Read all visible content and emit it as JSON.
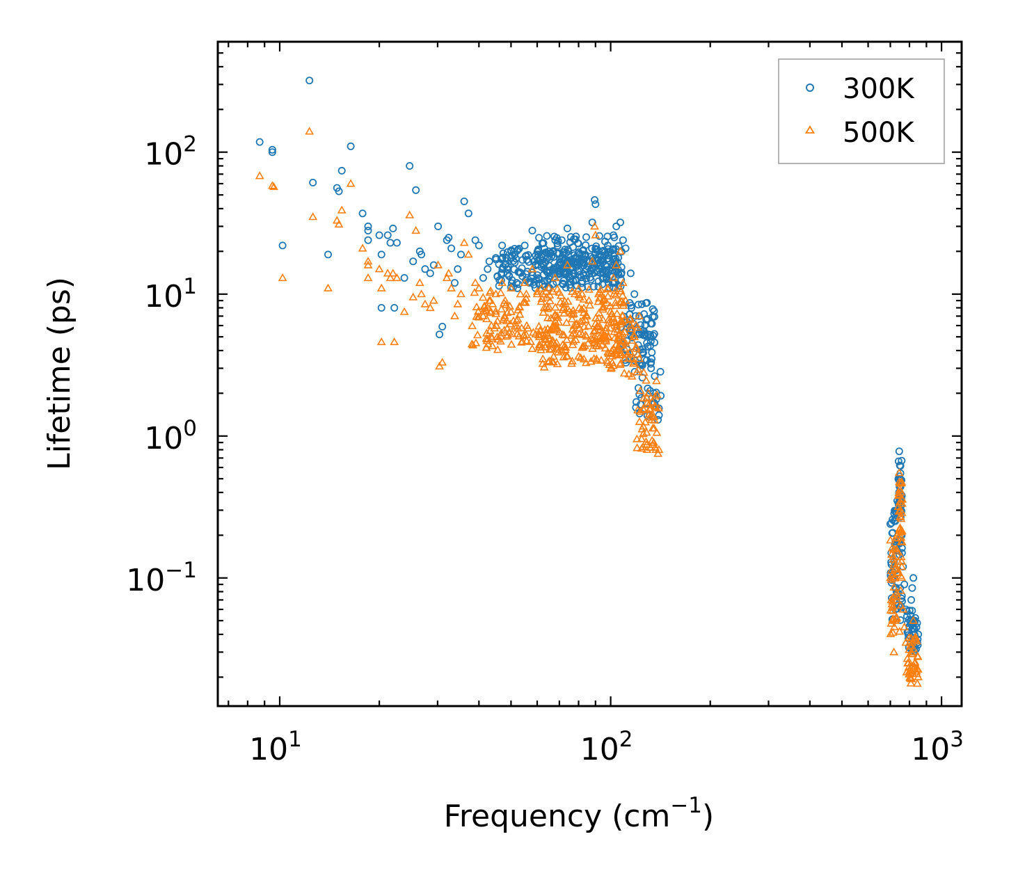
{
  "chart_data": {
    "type": "scatter",
    "title": "",
    "xlabel": "Frequency (cm",
    "xlabel_sup": "−1",
    "xlabel_end": ")",
    "ylabel": "Lifetime (ps)",
    "xscale": "log",
    "yscale": "log",
    "xlim": [
      6.5,
      1150
    ],
    "ylim": [
      0.0125,
      600
    ],
    "x_ticks": [
      {
        "value": 10,
        "base": "10",
        "exp": "1"
      },
      {
        "value": 100,
        "base": "10",
        "exp": "2"
      },
      {
        "value": 1000,
        "base": "10",
        "exp": "3"
      }
    ],
    "y_ticks": [
      {
        "value": 0.1,
        "base": "10",
        "exp": "−1"
      },
      {
        "value": 1,
        "base": "10",
        "exp": "0"
      },
      {
        "value": 10,
        "base": "10",
        "exp": "1"
      },
      {
        "value": 100,
        "base": "10",
        "exp": "2"
      }
    ],
    "legend_position": "top-right",
    "series": [
      {
        "name": "300K",
        "marker": "circle-open",
        "color": "#1f77b4",
        "points": [
          [
            8.7,
            118
          ],
          [
            9.5,
            104
          ],
          [
            9.5,
            100
          ],
          [
            10.2,
            22
          ],
          [
            12.3,
            320
          ],
          [
            12.6,
            61
          ],
          [
            14.0,
            19
          ],
          [
            14.9,
            56
          ],
          [
            15.1,
            53
          ],
          [
            15.4,
            74
          ],
          [
            16.4,
            110
          ],
          [
            17.8,
            37
          ],
          [
            18.5,
            30
          ],
          [
            18.5,
            28
          ],
          [
            18.5,
            24
          ],
          [
            20.0,
            26
          ],
          [
            20.3,
            19
          ],
          [
            20.3,
            8
          ],
          [
            21.2,
            26
          ],
          [
            21.6,
            23
          ],
          [
            22.0,
            29
          ],
          [
            22.6,
            23
          ],
          [
            22.2,
            8
          ],
          [
            23.8,
            13
          ],
          [
            24.7,
            80
          ],
          [
            25.3,
            17
          ],
          [
            25.8,
            54
          ],
          [
            26.5,
            20
          ],
          [
            26.8,
            19
          ],
          [
            27.5,
            15
          ],
          [
            28.5,
            14
          ],
          [
            29.2,
            16
          ],
          [
            30.1,
            30
          ],
          [
            30.4,
            5.2
          ],
          [
            31.0,
            5.9
          ],
          [
            32.0,
            24
          ],
          [
            32.4,
            25
          ],
          [
            33.0,
            21
          ],
          [
            33.8,
            12
          ],
          [
            34.5,
            15
          ],
          [
            35.3,
            19
          ],
          [
            36.1,
            45
          ],
          [
            37.2,
            37
          ],
          [
            39.0,
            24
          ],
          [
            40.0,
            22
          ],
          [
            41.2,
            13
          ],
          [
            42.5,
            15
          ],
          [
            43.0,
            17
          ],
          [
            45.0,
            18
          ],
          [
            47.0,
            22
          ],
          [
            48.0,
            16
          ],
          [
            50.0,
            20
          ],
          [
            52.0,
            12
          ],
          [
            55.0,
            22
          ],
          [
            58.0,
            28
          ],
          [
            60.0,
            18
          ],
          [
            63.0,
            15
          ],
          [
            65.0,
            20
          ],
          [
            68.0,
            24
          ],
          [
            72.0,
            14
          ],
          [
            74.0,
            29
          ],
          [
            78.0,
            18
          ],
          [
            82.0,
            19
          ],
          [
            86.0,
            17
          ],
          [
            88.0,
            32
          ],
          [
            89.5,
            46
          ],
          [
            90.0,
            43
          ],
          [
            92.0,
            20
          ],
          [
            95.0,
            18
          ],
          [
            98.0,
            22
          ],
          [
            102.0,
            26
          ],
          [
            104.0,
            30
          ],
          [
            107.0,
            32
          ],
          [
            109.0,
            24
          ],
          [
            111.0,
            21
          ],
          [
            115.0,
            14
          ],
          [
            118.0,
            10
          ],
          [
            122.0,
            7
          ],
          [
            126.0,
            5.5
          ],
          [
            130.0,
            5.2
          ],
          [
            133.0,
            3.5
          ],
          [
            135.0,
            2.0
          ],
          [
            137.0,
            1.6
          ],
          [
            139.0,
            1.3
          ],
          [
            140.0,
            1.4
          ],
          [
            700,
            0.24
          ],
          [
            705,
            0.15
          ],
          [
            712,
            0.11
          ],
          [
            718,
            0.07
          ],
          [
            725,
            0.06
          ],
          [
            735,
            0.35
          ],
          [
            745,
            0.78
          ],
          [
            748,
            0.62
          ],
          [
            752,
            0.44
          ],
          [
            758,
            0.2
          ],
          [
            765,
            0.12
          ],
          [
            772,
            0.09
          ],
          [
            780,
            0.06
          ],
          [
            790,
            0.048
          ],
          [
            800,
            0.045
          ],
          [
            810,
            0.07
          ],
          [
            815,
            0.085
          ],
          [
            822,
            0.1
          ],
          [
            830,
            0.05
          ],
          [
            840,
            0.045
          ],
          [
            845,
            0.035
          ],
          [
            850,
            0.04
          ]
        ],
        "bands": [
          {
            "x": [
              45,
              108
            ],
            "y": [
              11,
              21
            ],
            "n": 230
          },
          {
            "x": [
              60,
              106
            ],
            "y": [
              13,
              26
            ],
            "n": 120
          },
          {
            "x": [
              106,
              136
            ],
            "y": [
              3.2,
              9
            ],
            "n": 70
          },
          {
            "x": [
              118,
              142
            ],
            "y": [
              1.3,
              3.5
            ],
            "n": 30
          },
          {
            "x": [
              700,
              760
            ],
            "y": [
              0.05,
              0.3
            ],
            "n": 55
          },
          {
            "x": [
              740,
              760
            ],
            "y": [
              0.25,
              0.7
            ],
            "n": 25
          },
          {
            "x": [
              780,
              850
            ],
            "y": [
              0.03,
              0.06
            ],
            "n": 35
          }
        ]
      },
      {
        "name": "500K",
        "marker": "triangle-open",
        "color": "#ff7f0e",
        "points": [
          [
            8.7,
            68
          ],
          [
            9.5,
            58
          ],
          [
            9.6,
            57
          ],
          [
            10.2,
            13
          ],
          [
            12.3,
            140
          ],
          [
            12.6,
            35
          ],
          [
            14.0,
            11
          ],
          [
            14.9,
            33
          ],
          [
            15.1,
            31
          ],
          [
            15.4,
            39
          ],
          [
            16.4,
            60
          ],
          [
            17.8,
            21
          ],
          [
            18.5,
            17
          ],
          [
            18.5,
            16
          ],
          [
            18.5,
            13
          ],
          [
            20.0,
            15
          ],
          [
            20.3,
            11
          ],
          [
            20.3,
            4.6
          ],
          [
            21.2,
            14
          ],
          [
            21.6,
            13
          ],
          [
            22.0,
            14
          ],
          [
            22.6,
            13
          ],
          [
            22.2,
            4.6
          ],
          [
            23.8,
            7.5
          ],
          [
            24.7,
            36
          ],
          [
            25.3,
            9.5
          ],
          [
            25.8,
            28
          ],
          [
            26.5,
            12
          ],
          [
            26.8,
            10
          ],
          [
            27.5,
            8.5
          ],
          [
            28.5,
            8
          ],
          [
            29.2,
            9
          ],
          [
            30.1,
            16
          ],
          [
            30.4,
            3.1
          ],
          [
            31.0,
            3.3
          ],
          [
            32.0,
            13
          ],
          [
            32.4,
            14
          ],
          [
            33.0,
            11
          ],
          [
            33.8,
            7
          ],
          [
            34.5,
            8.5
          ],
          [
            35.3,
            10
          ],
          [
            36.1,
            23
          ],
          [
            37.2,
            19
          ],
          [
            39.0,
            12
          ],
          [
            40.0,
            11
          ],
          [
            41.2,
            7
          ],
          [
            42.5,
            8
          ],
          [
            43.0,
            9
          ],
          [
            45.0,
            10
          ],
          [
            47.0,
            12
          ],
          [
            48.0,
            9
          ],
          [
            50.0,
            11
          ],
          [
            52.0,
            6.5
          ],
          [
            55.0,
            12
          ],
          [
            58.0,
            15
          ],
          [
            60.0,
            10
          ],
          [
            63.0,
            8
          ],
          [
            65.0,
            11
          ],
          [
            68.0,
            13
          ],
          [
            72.0,
            8
          ],
          [
            74.0,
            16
          ],
          [
            78.0,
            10
          ],
          [
            82.0,
            10
          ],
          [
            86.0,
            9
          ],
          [
            88.0,
            17
          ],
          [
            89.5,
            30
          ],
          [
            90.0,
            26
          ],
          [
            92.0,
            10
          ],
          [
            95.0,
            9
          ],
          [
            98.0,
            11
          ],
          [
            102.0,
            13
          ],
          [
            104.0,
            16
          ],
          [
            107.0,
            20
          ],
          [
            109.0,
            12
          ],
          [
            111.0,
            9
          ],
          [
            115.0,
            6
          ],
          [
            118.0,
            5
          ],
          [
            122.0,
            3.5
          ],
          [
            126.0,
            2.8
          ],
          [
            130.0,
            2.0
          ],
          [
            133.0,
            1.3
          ],
          [
            135.0,
            0.9
          ],
          [
            137.0,
            0.8
          ],
          [
            139.0,
            0.75
          ],
          [
            140.0,
            0.8
          ],
          [
            700,
            0.1
          ],
          [
            705,
            0.07
          ],
          [
            712,
            0.05
          ],
          [
            718,
            0.03
          ],
          [
            725,
            0.05
          ],
          [
            735,
            0.2
          ],
          [
            745,
            0.55
          ],
          [
            748,
            0.42
          ],
          [
            752,
            0.3
          ],
          [
            758,
            0.12
          ],
          [
            765,
            0.06
          ],
          [
            772,
            0.045
          ],
          [
            780,
            0.035
          ],
          [
            790,
            0.025
          ],
          [
            800,
            0.022
          ],
          [
            810,
            0.03
          ],
          [
            815,
            0.035
          ],
          [
            822,
            0.05
          ],
          [
            830,
            0.025
          ],
          [
            840,
            0.022
          ],
          [
            845,
            0.018
          ],
          [
            850,
            0.02
          ]
        ],
        "bands": [
          {
            "x": [
              38,
              110
            ],
            "y": [
              4,
              11
            ],
            "n": 260
          },
          {
            "x": [
              60,
              108
            ],
            "y": [
              3,
              6
            ],
            "n": 90
          },
          {
            "x": [
              100,
              122
            ],
            "y": [
              2.5,
              8
            ],
            "n": 50
          },
          {
            "x": [
              120,
              140
            ],
            "y": [
              0.8,
              2.5
            ],
            "n": 45
          },
          {
            "x": [
              700,
              760
            ],
            "y": [
              0.04,
              0.2
            ],
            "n": 55
          },
          {
            "x": [
              740,
              760
            ],
            "y": [
              0.2,
              0.5
            ],
            "n": 25
          },
          {
            "x": [
              780,
              850
            ],
            "y": [
              0.018,
              0.04
            ],
            "n": 35
          }
        ]
      }
    ]
  }
}
